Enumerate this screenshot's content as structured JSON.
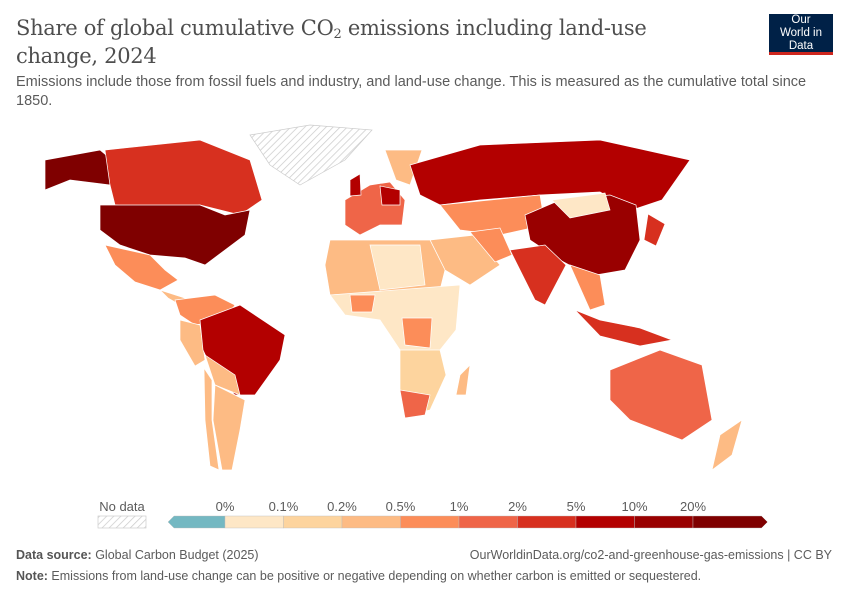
{
  "header": {
    "title_main": "Share of global cumulative CO",
    "title_sub": "2",
    "title_rest": " emissions including land-use change, 2024",
    "subtitle": "Emissions include those from fossil fuels and industry, and land-use change. This is measured as the cumulative total since 1850.",
    "logo": "Our World in Data",
    "logo_colors": {
      "bg": "#002147",
      "accent": "#ce261e"
    }
  },
  "legend": {
    "no_data_label": "No data",
    "thresholds": [
      "0%",
      "0.1%",
      "0.2%",
      "0.5%",
      "1%",
      "2%",
      "5%",
      "10%",
      "20%"
    ],
    "colors": [
      "#74b8c2",
      "#fee7c6",
      "#fdd49e",
      "#fdbb84",
      "#fc8d59",
      "#ef6548",
      "#d7301f",
      "#b30000",
      "#990000",
      "#7f0000"
    ]
  },
  "footer": {
    "source_label": "Data source:",
    "source": " Global Carbon Budget (2025)",
    "url": "OurWorldinData.org/co2-and-greenhouse-gas-emissions | CC BY",
    "note_label": "Note:",
    "note": " Emissions from land-use change can be positive or negative depending on whether carbon is emitted or sequestered."
  }
}
